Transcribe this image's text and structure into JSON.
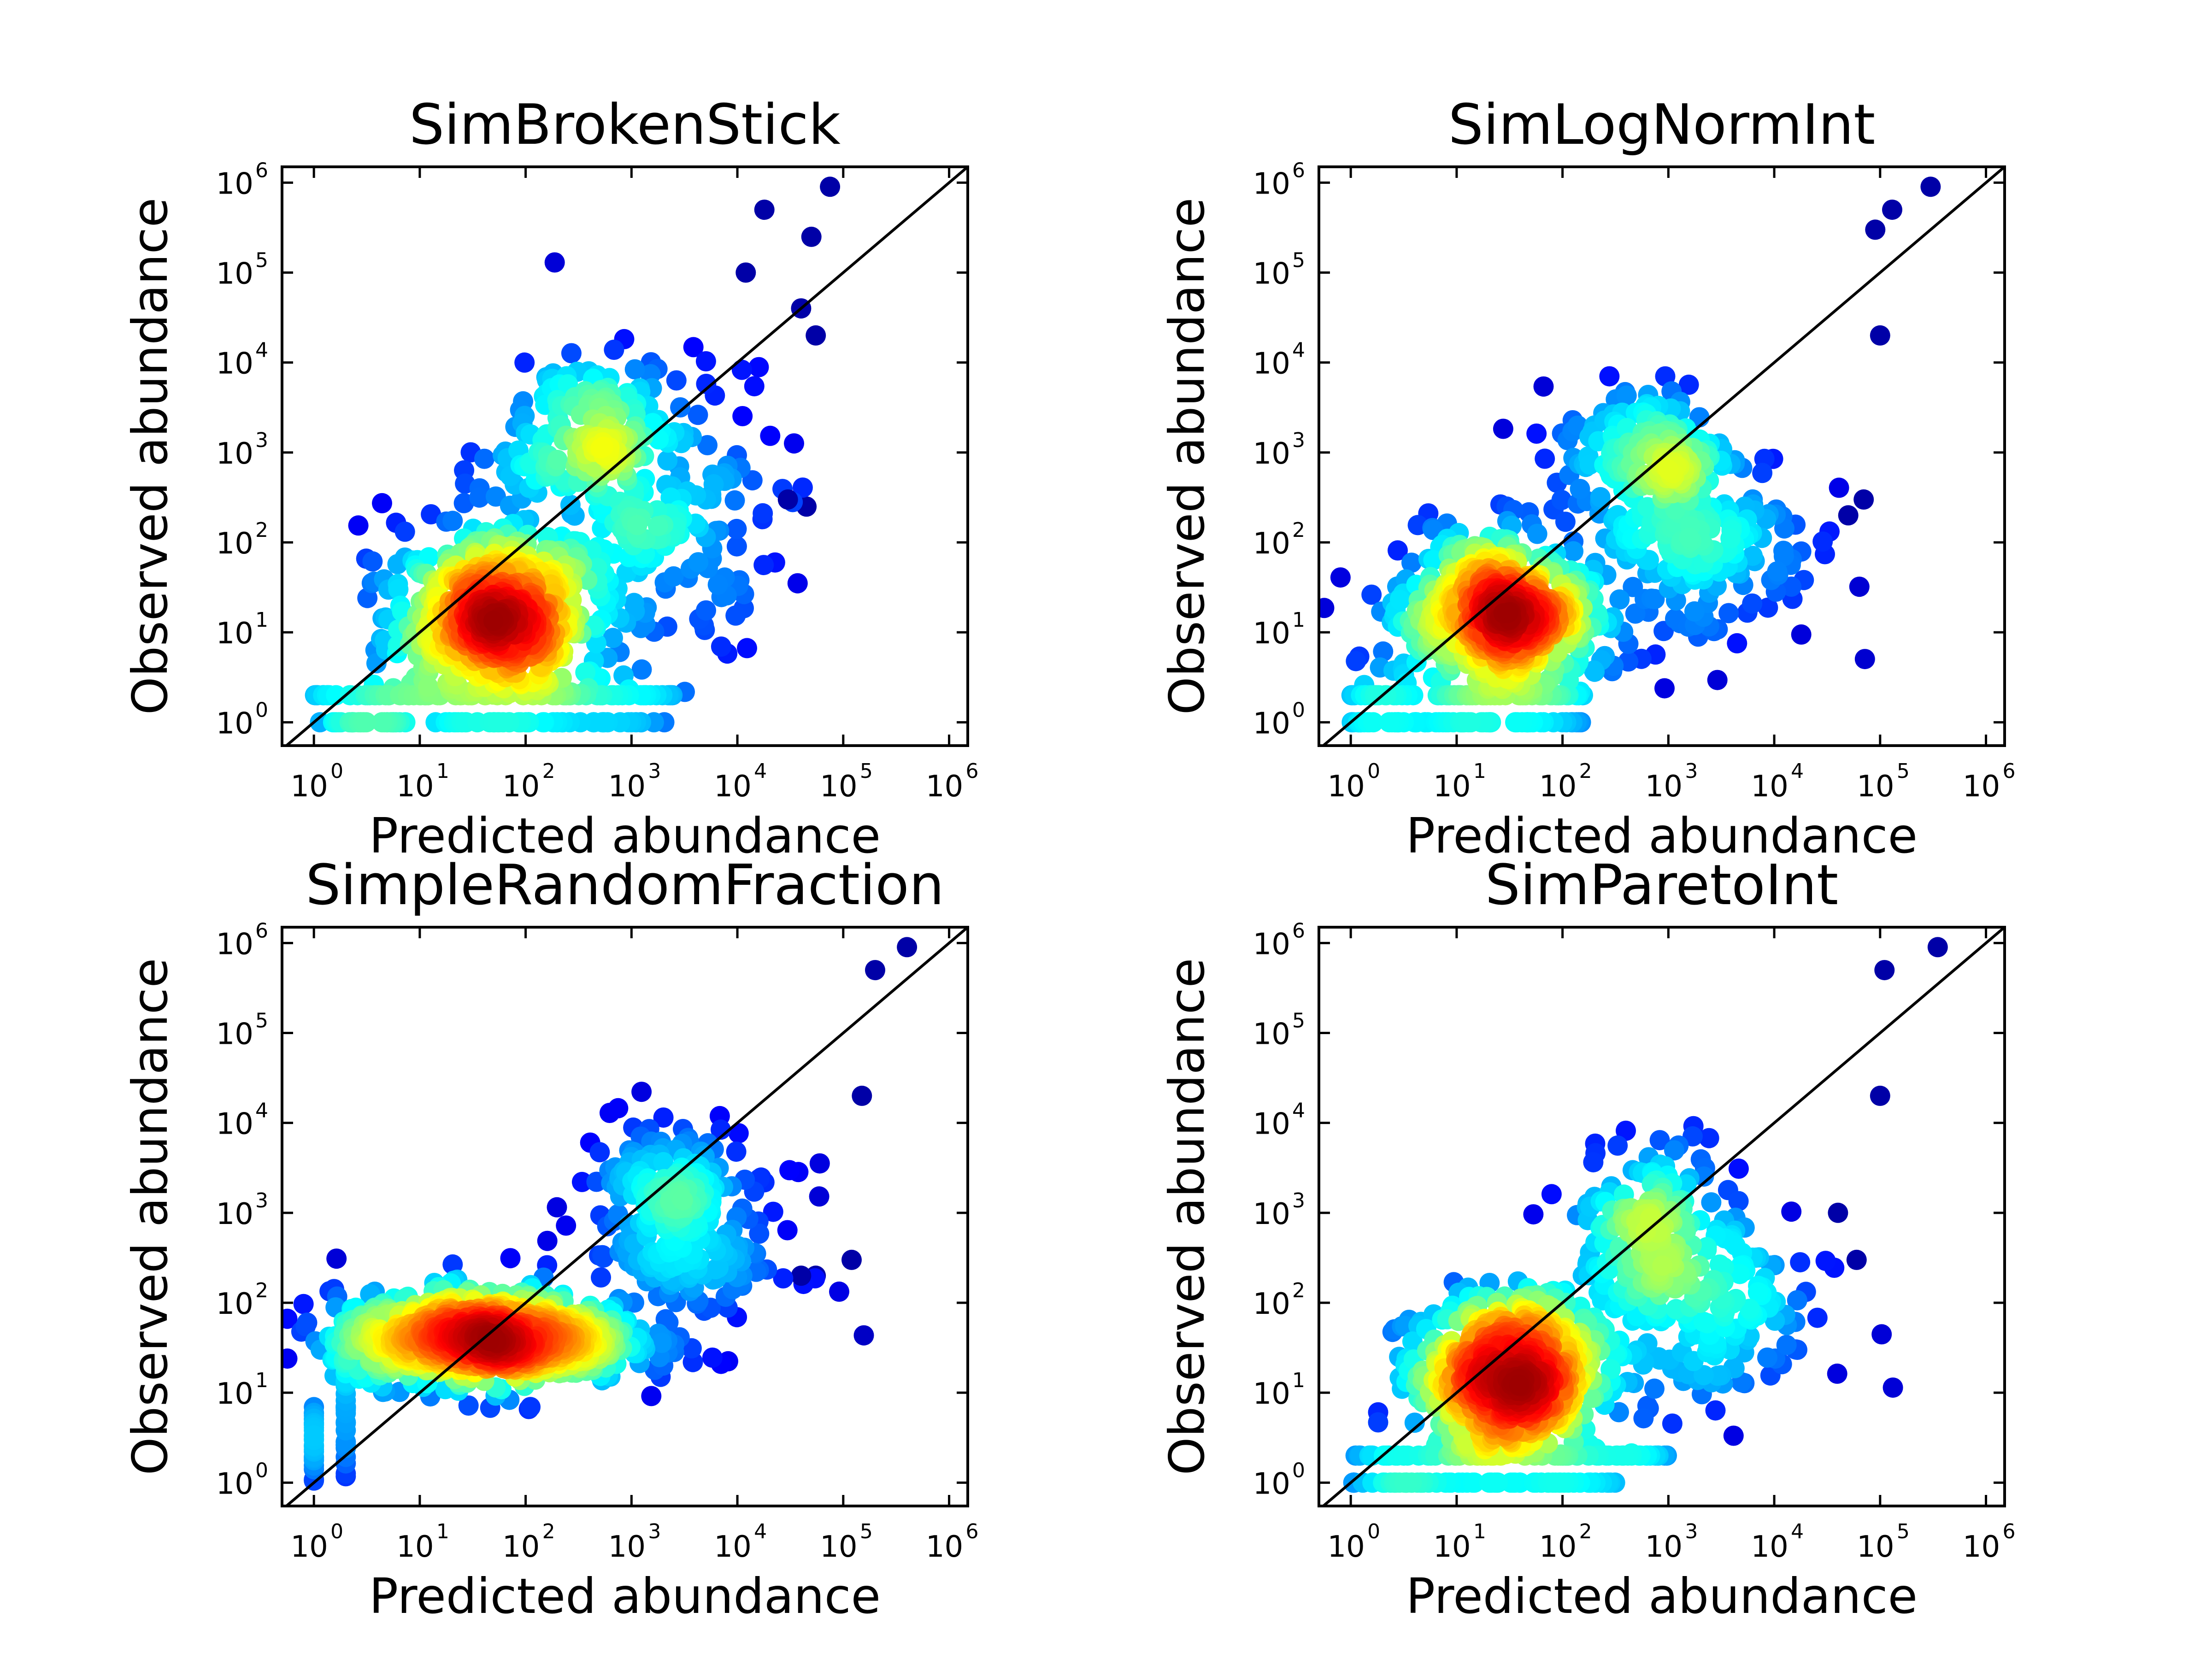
{
  "chart_data": [
    {
      "type": "scatter",
      "title": "SimBrokenStick",
      "xlabel": "Predicted abundance",
      "ylabel": "Observed abundance",
      "x_scale": "log",
      "y_scale": "log",
      "xlim": [
        0.5,
        1500000
      ],
      "ylim": [
        0.55,
        1500000
      ],
      "x_ticks": [
        1,
        10,
        100,
        1000,
        10000,
        100000,
        1000000
      ],
      "y_ticks": [
        1,
        10,
        100,
        1000,
        10000,
        100000,
        1000000
      ],
      "reference_line": "y = x",
      "color_encoding": "point density (jet colormap, dark red = highest)",
      "point_groups": [
        {
          "name": "core",
          "x_center_log": 1.7,
          "y_center_log": 1.2,
          "x_spread_log": 0.5,
          "y_spread_log": 0.55,
          "n": 600
        },
        {
          "name": "upper",
          "x_center_log": 2.6,
          "y_center_log": 3.3,
          "x_spread_log": 0.35,
          "y_spread_log": 0.45,
          "n": 140
        },
        {
          "name": "low-wing",
          "x_center_log": 3.2,
          "y_center_log": 2.3,
          "x_spread_log": 0.6,
          "y_spread_log": 0.8,
          "n": 200
        },
        {
          "name": "floor-y1",
          "x_range_log": [
            0,
            3.4
          ],
          "y": 1,
          "n": 80
        },
        {
          "name": "floor-y2",
          "x_range_log": [
            0,
            3.4
          ],
          "y": 2,
          "n": 80
        }
      ],
      "highlight_points": [
        [
          75000,
          900000
        ],
        [
          18000,
          500000
        ],
        [
          50000,
          250000
        ],
        [
          12000,
          100000
        ],
        [
          40000,
          40000
        ],
        [
          55000,
          20000
        ],
        [
          30000,
          300
        ],
        [
          45000,
          250
        ]
      ]
    },
    {
      "type": "scatter",
      "title": "SimLogNormInt",
      "xlabel": "Predicted abundance",
      "ylabel": "Observed abundance",
      "x_scale": "log",
      "y_scale": "log",
      "xlim": [
        0.5,
        1500000
      ],
      "ylim": [
        0.55,
        1500000
      ],
      "x_ticks": [
        1,
        10,
        100,
        1000,
        10000,
        100000,
        1000000
      ],
      "y_ticks": [
        1,
        10,
        100,
        1000,
        10000,
        100000,
        1000000
      ],
      "reference_line": "y = x",
      "color_encoding": "point density (jet colormap, dark red = highest)",
      "point_groups": [
        {
          "name": "core",
          "x_center_log": 1.4,
          "y_center_log": 1.2,
          "x_spread_log": 0.45,
          "y_spread_log": 0.45,
          "n": 600
        },
        {
          "name": "upper",
          "x_center_log": 2.8,
          "y_center_log": 3.0,
          "x_spread_log": 0.4,
          "y_spread_log": 0.4,
          "n": 160
        },
        {
          "name": "low-wing",
          "x_center_log": 3.3,
          "y_center_log": 2.0,
          "x_spread_log": 0.55,
          "y_spread_log": 0.6,
          "n": 200
        },
        {
          "name": "floor-y1",
          "x_range_log": [
            0,
            2.2
          ],
          "y": 1,
          "n": 70
        },
        {
          "name": "floor-y2",
          "x_range_log": [
            0,
            2.2
          ],
          "y": 2,
          "n": 70
        }
      ],
      "highlight_points": [
        [
          300000,
          900000
        ],
        [
          130000,
          500000
        ],
        [
          90000,
          300000
        ],
        [
          100000,
          20000
        ],
        [
          70000,
          300
        ],
        [
          50000,
          200
        ]
      ]
    },
    {
      "type": "scatter",
      "title": "SimpleRandomFraction",
      "xlabel": "Predicted abundance",
      "ylabel": "Observed abundance",
      "x_scale": "log",
      "y_scale": "log",
      "xlim": [
        0.5,
        1500000
      ],
      "ylim": [
        0.55,
        1500000
      ],
      "x_ticks": [
        1,
        10,
        100,
        1000,
        10000,
        100000,
        1000000
      ],
      "y_ticks": [
        1,
        10,
        100,
        1000,
        10000,
        100000,
        1000000
      ],
      "reference_line": "y = x",
      "color_encoding": "point density (jet colormap, dark red = highest)",
      "point_groups": [
        {
          "name": "band",
          "x_center_log": 1.6,
          "y_center_log": 1.6,
          "x_spread_log": 0.7,
          "y_spread_log": 0.25,
          "n": 900
        },
        {
          "name": "upper",
          "x_center_log": 3.3,
          "y_center_log": 3.2,
          "x_spread_log": 0.4,
          "y_spread_log": 0.45,
          "n": 160
        },
        {
          "name": "low-wing",
          "x_center_log": 3.6,
          "y_center_log": 2.5,
          "x_spread_log": 0.5,
          "y_spread_log": 0.5,
          "n": 120
        },
        {
          "name": "column-x1",
          "x": 1,
          "y_range_log": [
            0,
            0.9
          ],
          "n": 30
        },
        {
          "name": "column-x2",
          "x": 2,
          "y_range_log": [
            0,
            1.4
          ],
          "n": 30
        }
      ],
      "highlight_points": [
        [
          400000,
          900000
        ],
        [
          200000,
          500000
        ],
        [
          150000,
          20000
        ],
        [
          120000,
          300
        ],
        [
          40000,
          200
        ],
        [
          55000,
          200
        ]
      ]
    },
    {
      "type": "scatter",
      "title": "SimParetoInt",
      "xlabel": "Predicted abundance",
      "ylabel": "Observed abundance",
      "x_scale": "log",
      "y_scale": "log",
      "xlim": [
        0.5,
        1500000
      ],
      "ylim": [
        0.55,
        1500000
      ],
      "x_ticks": [
        1,
        10,
        100,
        1000,
        10000,
        100000,
        1000000
      ],
      "y_ticks": [
        1,
        10,
        100,
        1000,
        10000,
        100000,
        1000000
      ],
      "reference_line": "y = x",
      "color_encoding": "point density (jet colormap, dark red = highest)",
      "point_groups": [
        {
          "name": "core",
          "x_center_log": 1.5,
          "y_center_log": 1.2,
          "x_spread_log": 0.45,
          "y_spread_log": 0.45,
          "n": 600
        },
        {
          "name": "upper",
          "x_center_log": 2.9,
          "y_center_log": 2.9,
          "x_spread_log": 0.4,
          "y_spread_log": 0.45,
          "n": 160
        },
        {
          "name": "low-wing",
          "x_center_log": 3.3,
          "y_center_log": 1.8,
          "x_spread_log": 0.6,
          "y_spread_log": 0.55,
          "n": 180
        },
        {
          "name": "floor-y1",
          "x_range_log": [
            0,
            2.6
          ],
          "y": 1,
          "n": 70
        },
        {
          "name": "floor-y2",
          "x_range_log": [
            0,
            3.0
          ],
          "y": 2,
          "n": 70
        }
      ],
      "highlight_points": [
        [
          350000,
          900000
        ],
        [
          110000,
          500000
        ],
        [
          100000,
          20000
        ],
        [
          60000,
          300
        ],
        [
          40000,
          1000
        ]
      ]
    }
  ]
}
